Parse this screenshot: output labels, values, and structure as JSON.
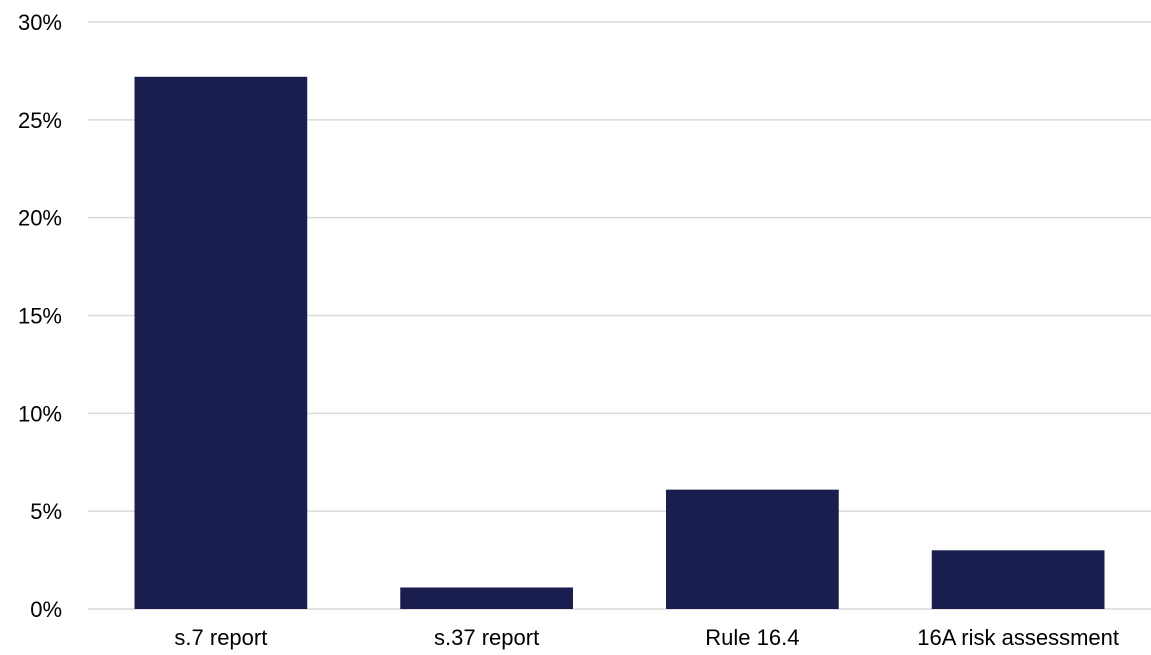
{
  "chart_data": {
    "type": "bar",
    "categories": [
      "s.7 report",
      "s.37 report",
      "Rule 16.4",
      "16A risk assessment"
    ],
    "values": [
      27.2,
      1.1,
      6.1,
      3.0
    ],
    "y_tick_labels": [
      "0%",
      "5%",
      "10%",
      "15%",
      "20%",
      "25%",
      "30%"
    ],
    "y_ticks": [
      0,
      5,
      10,
      15,
      20,
      25,
      30
    ],
    "ylim": [
      0,
      30
    ],
    "title": "",
    "xlabel": "",
    "ylabel": "",
    "grid": true,
    "legend": "none",
    "bar_color": "#1a1e4e",
    "grid_color": "#d9d9d9"
  }
}
